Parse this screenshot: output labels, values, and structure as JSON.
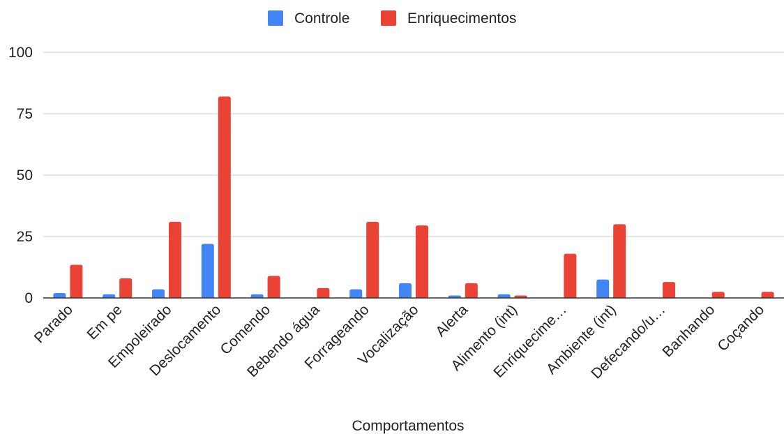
{
  "chart_data": {
    "type": "bar",
    "title": "",
    "xlabel": "Comportamentos",
    "ylabel": "",
    "ylim": [
      0,
      100
    ],
    "yticks": [
      0,
      25,
      50,
      75,
      100
    ],
    "legend_position": "top",
    "grid": true,
    "categories": [
      "Parado",
      "Em pe",
      "Empoleirado",
      "Deslocamento",
      "Comendo",
      "Bebendo água",
      "Forrageando",
      "Vocalização",
      "Alerta",
      "Alimento (int)",
      "Enriquecime…",
      "Ambiente (int)",
      "Defecando/u…",
      "Banhando",
      "Coçando"
    ],
    "series": [
      {
        "name": "Controle",
        "color": "#4285f4",
        "values": [
          2,
          1.5,
          3.5,
          22,
          1.5,
          0,
          3.5,
          6,
          1,
          1.5,
          0,
          7.5,
          0,
          0,
          0
        ]
      },
      {
        "name": "Enriquecimentos",
        "color": "#ea4335",
        "values": [
          13.5,
          8,
          31,
          82,
          9,
          4,
          31,
          29.5,
          6,
          1,
          18,
          30,
          6.5,
          2.5,
          2.5
        ]
      }
    ]
  }
}
